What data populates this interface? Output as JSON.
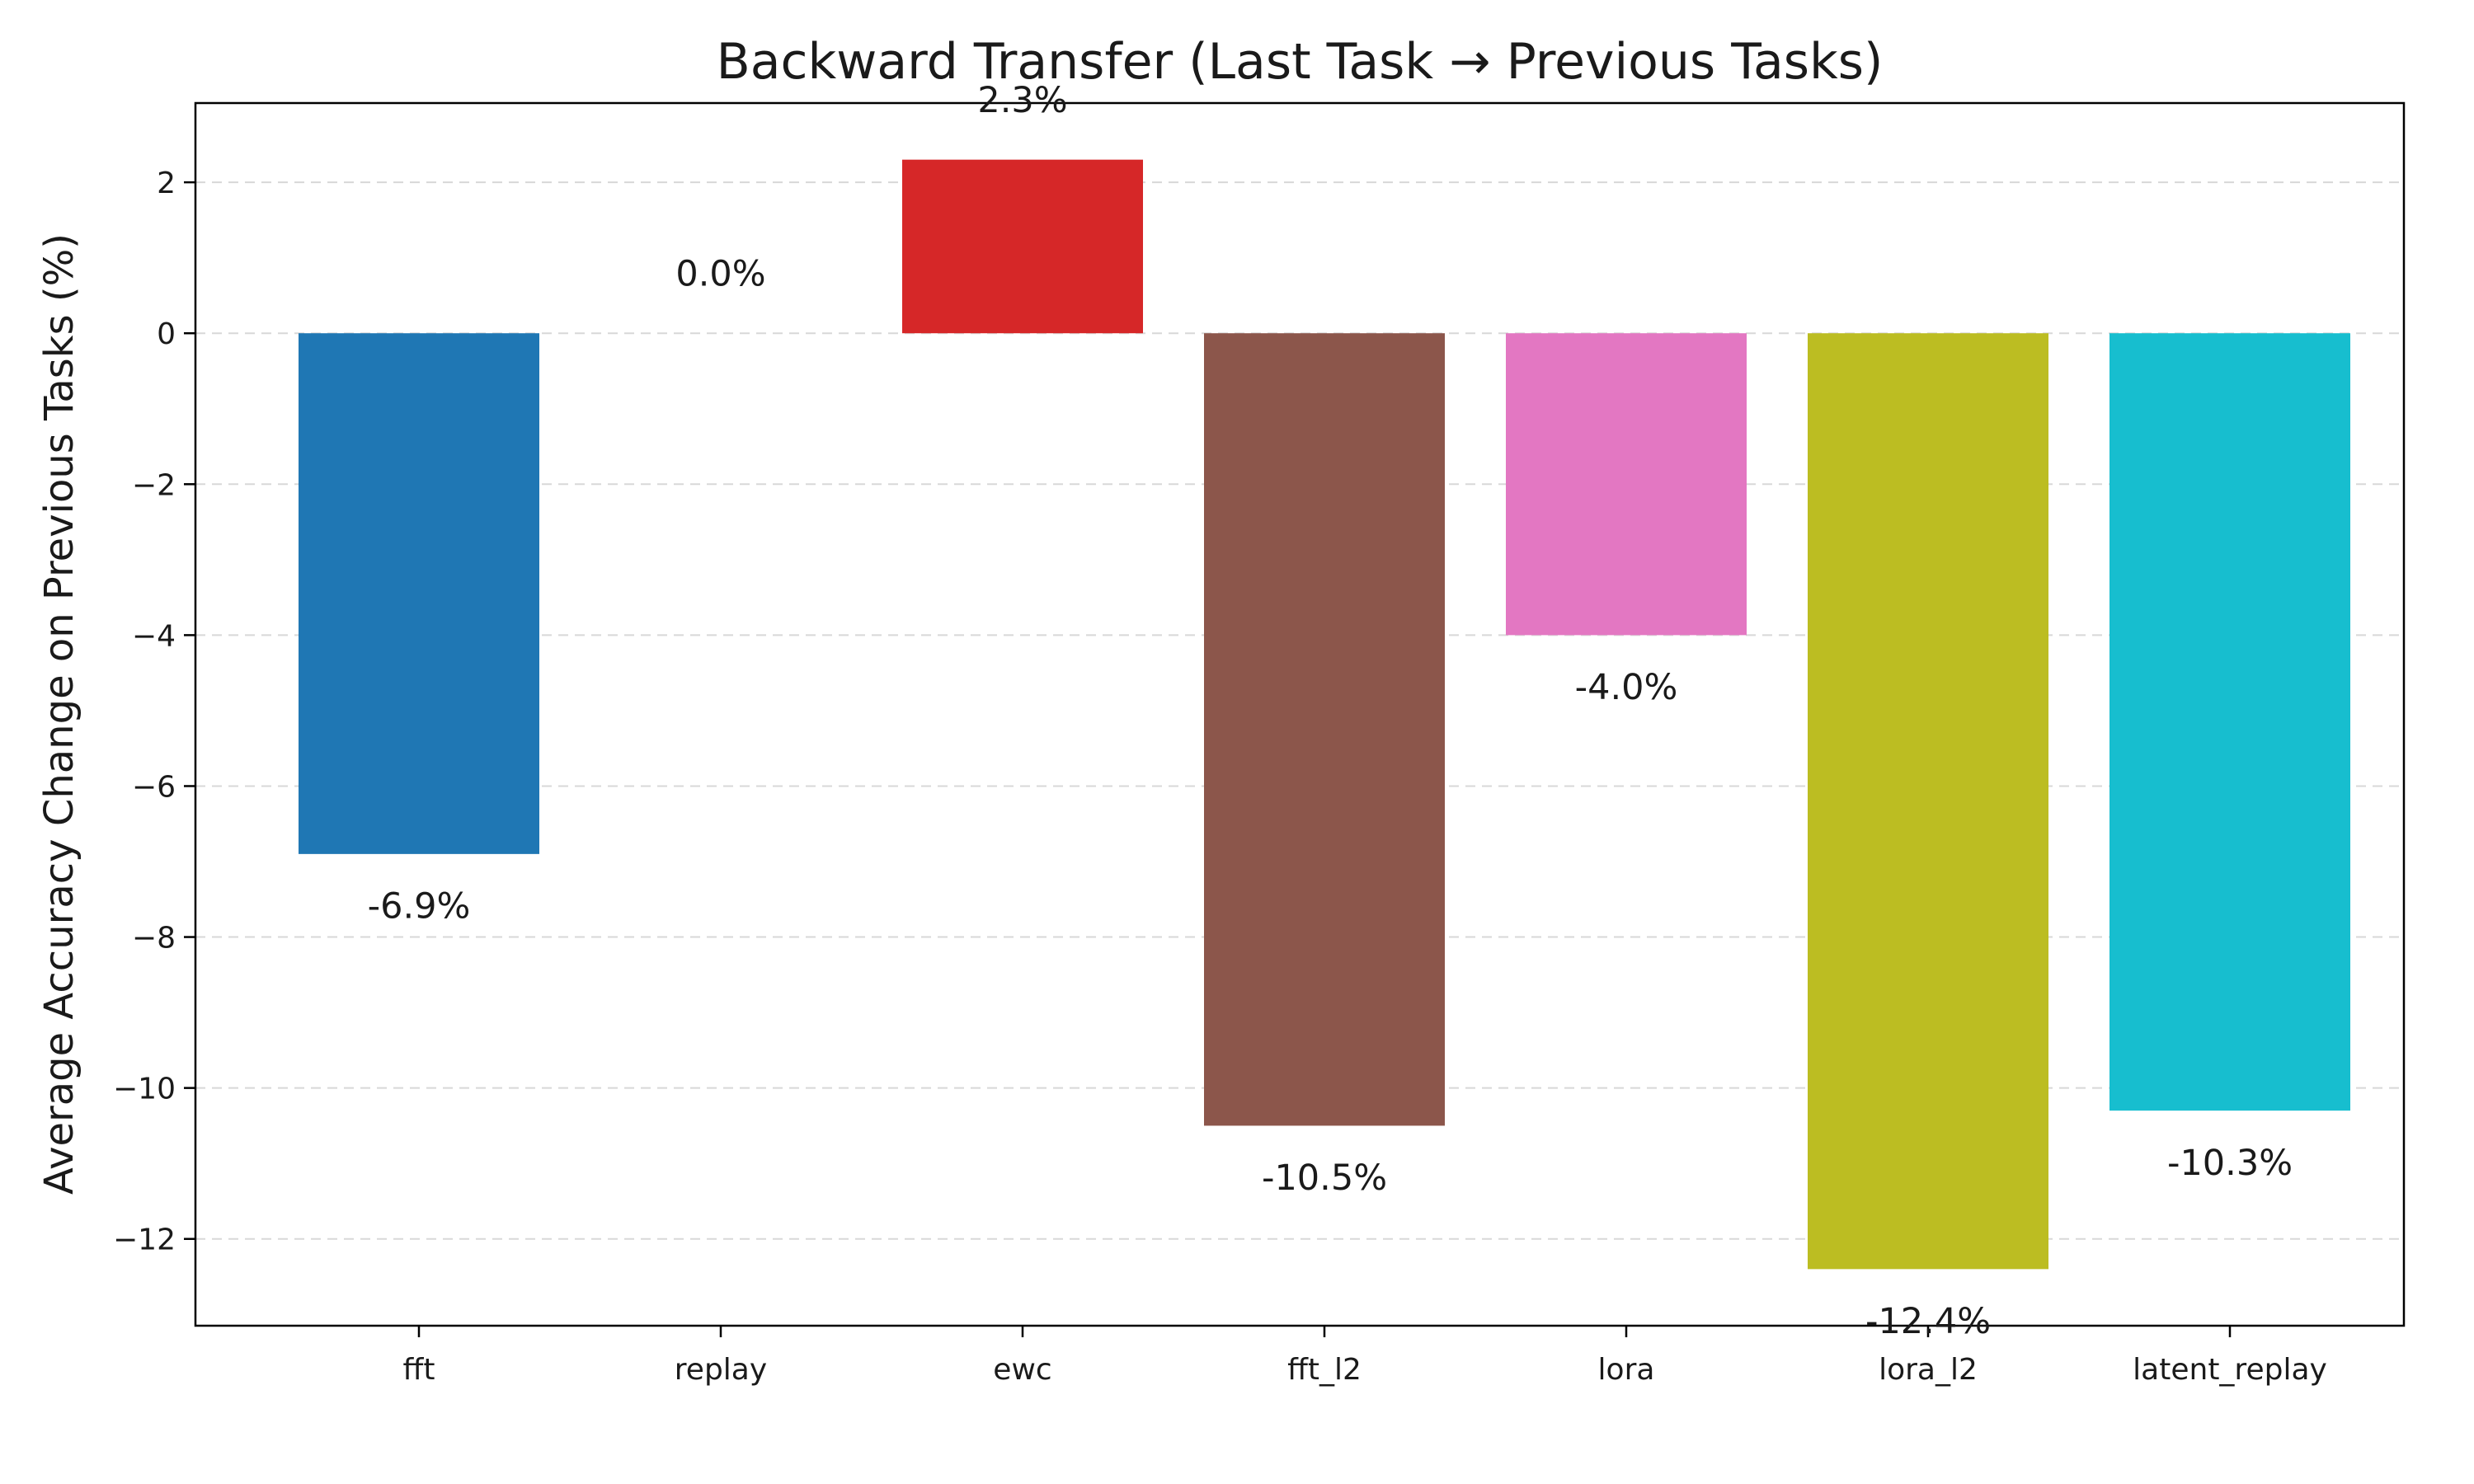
{
  "chart_data": {
    "type": "bar",
    "title": "Backward Transfer (Last Task → Previous Tasks)",
    "xlabel": "",
    "ylabel": "Average Accuracy Change on Previous Tasks (%)",
    "categories": [
      "fft",
      "replay",
      "ewc",
      "fft_l2",
      "lora",
      "lora_l2",
      "latent_replay"
    ],
    "values": [
      -6.9,
      0.0,
      2.3,
      -10.5,
      -4.0,
      -12.4,
      -10.3
    ],
    "value_labels": [
      "-6.9%",
      "0.0%",
      "2.3%",
      "-10.5%",
      "-4.0%",
      "-12.4%",
      "-10.3%"
    ],
    "colors": [
      "#1f77b4",
      "#ff7f0e",
      "#d62728",
      "#8c564b",
      "#e377c2",
      "#bcbd22",
      "#17becf"
    ],
    "yticks": [
      2,
      0,
      -2,
      -4,
      -6,
      -8,
      -10,
      -12
    ],
    "ytick_labels": [
      "2",
      "0",
      "−2",
      "−4",
      "−6",
      "−8",
      "−10",
      "−12"
    ],
    "ylim": [
      -13.15,
      3.05
    ],
    "grid": "y-dashed",
    "legend": "none"
  }
}
